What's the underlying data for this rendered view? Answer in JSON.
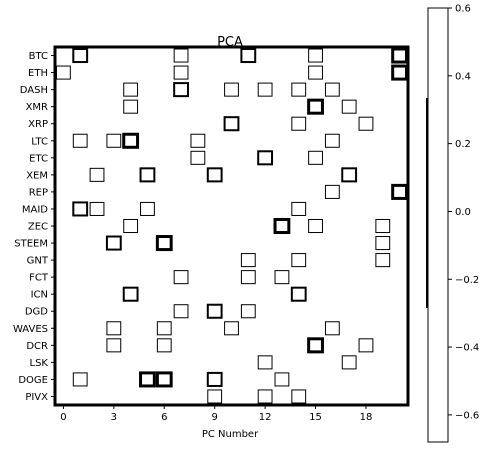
{
  "chart_data": {
    "type": "heatmap",
    "title": "PCA",
    "xlabel": "PC Number",
    "ylabel": "",
    "x_ticks": [
      0,
      3,
      6,
      9,
      12,
      15,
      18
    ],
    "n_columns": 21,
    "rows": [
      "BTC",
      "ETH",
      "DASH",
      "XMR",
      "XRP",
      "LTC",
      "ETC",
      "XEM",
      "REP",
      "MAID",
      "ZEC",
      "STEEM",
      "GNT",
      "FCT",
      "ICN",
      "DGD",
      "WAVES",
      "DCR",
      "LSK",
      "DOGE",
      "PIVX"
    ],
    "xlim": [
      -0.5,
      20.5
    ],
    "colorbar": {
      "ticks": [
        0.6,
        0.4,
        0.2,
        0.0,
        -0.2,
        -0.4,
        -0.6
      ],
      "tick_labels": [
        "0.6",
        "0.4",
        "0.2",
        "0.0",
        "−0.2",
        "−0.4",
        "−0.6"
      ],
      "vmin": -0.68,
      "vmax": 0.6
    },
    "colors": {
      "cell": "#ffffff",
      "outline": "#000000"
    },
    "outlined_cells": [
      {
        "r": 0,
        "c": 1,
        "w": 2
      },
      {
        "r": 0,
        "c": 7,
        "w": 1
      },
      {
        "r": 0,
        "c": 11,
        "w": 2
      },
      {
        "r": 0,
        "c": 15,
        "w": 1
      },
      {
        "r": 0,
        "c": 20,
        "w": 3
      },
      {
        "r": 1,
        "c": 0,
        "w": 1
      },
      {
        "r": 1,
        "c": 7,
        "w": 1
      },
      {
        "r": 1,
        "c": 15,
        "w": 1
      },
      {
        "r": 1,
        "c": 20,
        "w": 3
      },
      {
        "r": 2,
        "c": 4,
        "w": 1
      },
      {
        "r": 2,
        "c": 7,
        "w": 2
      },
      {
        "r": 2,
        "c": 10,
        "w": 1
      },
      {
        "r": 2,
        "c": 12,
        "w": 1
      },
      {
        "r": 2,
        "c": 14,
        "w": 1
      },
      {
        "r": 2,
        "c": 16,
        "w": 1
      },
      {
        "r": 3,
        "c": 4,
        "w": 1
      },
      {
        "r": 3,
        "c": 15,
        "w": 3
      },
      {
        "r": 3,
        "c": 17,
        "w": 1
      },
      {
        "r": 4,
        "c": 10,
        "w": 2
      },
      {
        "r": 4,
        "c": 14,
        "w": 1
      },
      {
        "r": 4,
        "c": 18,
        "w": 1
      },
      {
        "r": 5,
        "c": 1,
        "w": 1
      },
      {
        "r": 5,
        "c": 3,
        "w": 1
      },
      {
        "r": 5,
        "c": 4,
        "w": 3
      },
      {
        "r": 5,
        "c": 8,
        "w": 1
      },
      {
        "r": 5,
        "c": 16,
        "w": 1
      },
      {
        "r": 6,
        "c": 8,
        "w": 1
      },
      {
        "r": 6,
        "c": 12,
        "w": 2
      },
      {
        "r": 6,
        "c": 15,
        "w": 1
      },
      {
        "r": 7,
        "c": 2,
        "w": 1
      },
      {
        "r": 7,
        "c": 5,
        "w": 2
      },
      {
        "r": 7,
        "c": 9,
        "w": 2
      },
      {
        "r": 7,
        "c": 17,
        "w": 2
      },
      {
        "r": 8,
        "c": 16,
        "w": 1
      },
      {
        "r": 8,
        "c": 20,
        "w": 3
      },
      {
        "r": 9,
        "c": 1,
        "w": 2
      },
      {
        "r": 9,
        "c": 2,
        "w": 1
      },
      {
        "r": 9,
        "c": 5,
        "w": 1
      },
      {
        "r": 9,
        "c": 14,
        "w": 1
      },
      {
        "r": 10,
        "c": 4,
        "w": 1
      },
      {
        "r": 10,
        "c": 13,
        "w": 3
      },
      {
        "r": 10,
        "c": 15,
        "w": 1
      },
      {
        "r": 10,
        "c": 19,
        "w": 1
      },
      {
        "r": 11,
        "c": 3,
        "w": 2
      },
      {
        "r": 11,
        "c": 6,
        "w": 3
      },
      {
        "r": 11,
        "c": 19,
        "w": 1
      },
      {
        "r": 12,
        "c": 11,
        "w": 1
      },
      {
        "r": 12,
        "c": 14,
        "w": 1
      },
      {
        "r": 12,
        "c": 19,
        "w": 1
      },
      {
        "r": 13,
        "c": 7,
        "w": 1
      },
      {
        "r": 13,
        "c": 11,
        "w": 1
      },
      {
        "r": 13,
        "c": 13,
        "w": 1
      },
      {
        "r": 14,
        "c": 4,
        "w": 2
      },
      {
        "r": 14,
        "c": 14,
        "w": 2
      },
      {
        "r": 15,
        "c": 7,
        "w": 1
      },
      {
        "r": 15,
        "c": 9,
        "w": 2
      },
      {
        "r": 15,
        "c": 11,
        "w": 1
      },
      {
        "r": 16,
        "c": 3,
        "w": 1
      },
      {
        "r": 16,
        "c": 6,
        "w": 1
      },
      {
        "r": 16,
        "c": 10,
        "w": 1
      },
      {
        "r": 16,
        "c": 16,
        "w": 1
      },
      {
        "r": 17,
        "c": 3,
        "w": 1
      },
      {
        "r": 17,
        "c": 6,
        "w": 1
      },
      {
        "r": 17,
        "c": 15,
        "w": 3
      },
      {
        "r": 17,
        "c": 18,
        "w": 1
      },
      {
        "r": 18,
        "c": 12,
        "w": 1
      },
      {
        "r": 18,
        "c": 17,
        "w": 1
      },
      {
        "r": 19,
        "c": 1,
        "w": 1
      },
      {
        "r": 19,
        "c": 5,
        "w": 3
      },
      {
        "r": 19,
        "c": 6,
        "w": 3
      },
      {
        "r": 19,
        "c": 9,
        "w": 2
      },
      {
        "r": 19,
        "c": 13,
        "w": 1
      },
      {
        "r": 20,
        "c": 9,
        "w": 1
      },
      {
        "r": 20,
        "c": 12,
        "w": 1
      },
      {
        "r": 20,
        "c": 14,
        "w": 1
      }
    ]
  }
}
